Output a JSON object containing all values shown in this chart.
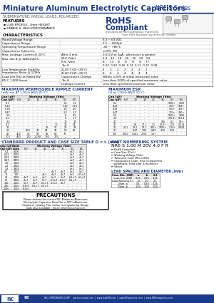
{
  "title": "Miniature Aluminum Electrolytic Capacitors",
  "series": "NRE-S Series",
  "bg_color": "#ffffff",
  "title_color": "#1a3a8a",
  "subtitle": "SUBMINIATURE, RADIAL LEADS, POLARIZED",
  "features_title": "FEATURES",
  "features": [
    "LOW PROFILE, 7mm HEIGHT",
    "STABLE & HIGH PERFORMANCE"
  ],
  "char_title": "CHARACTERISTICS",
  "char_note": "*See Part Number System for Details",
  "ripple_title": "MAXIMUM PERMISSIBLE RIPPLE CURRENT",
  "ripple_subtitle": "(mA rms AT 120Hz AND 85°C)",
  "ripple_headers": [
    "Cap (μF)",
    "Working Voltage (Vdc)",
    "6.3",
    "10",
    "16",
    "25",
    "35",
    "50",
    "63"
  ],
  "ripple_rows": [
    [
      "0.1",
      "",
      "-",
      "-",
      "-",
      "-",
      "-",
      "1.0",
      "1.2"
    ],
    [
      "0.22",
      "",
      "-",
      "-",
      "-",
      "-",
      "-",
      "1.47",
      "1.76"
    ],
    [
      "0.33",
      "",
      "-",
      "-",
      "-",
      "-",
      "-",
      "1.8",
      "2.0"
    ],
    [
      "0.47",
      "",
      "-",
      "-",
      "-",
      "-",
      "-",
      "2.3",
      "2.7"
    ],
    [
      "1.0",
      "",
      "-",
      "-",
      "-",
      "-",
      "-",
      "8",
      "9.5"
    ],
    [
      "2.2",
      "",
      "-",
      "-",
      "-",
      "-",
      "-",
      "9",
      "1.7"
    ],
    [
      "3.3",
      "",
      "-",
      "-",
      "-",
      "-",
      "-",
      "10",
      "12"
    ],
    [
      "4.7",
      "",
      "-",
      "-",
      "-",
      "-",
      "10",
      "20",
      "24"
    ],
    [
      "10",
      "",
      "-",
      "-",
      "-",
      "25",
      "27",
      "28",
      "33"
    ],
    [
      "22",
      "",
      "-",
      "200",
      "30",
      "45",
      "47",
      "50",
      "60"
    ],
    [
      "47",
      "",
      "400",
      "50",
      "55",
      "65",
      "68",
      "75",
      "-"
    ],
    [
      "100",
      "",
      "450",
      "110",
      "1,280",
      "195",
      "105",
      "-",
      "-"
    ]
  ],
  "esr_title": "MAXIMUM ESR",
  "esr_subtitle": "(Ω at 120Hz AND 20°C)",
  "esr_headers": [
    "Cap (μF)",
    "Working Voltage (Vdc)",
    "6.3",
    "10",
    "16",
    "25",
    "35",
    "50",
    "63"
  ],
  "esr_rows": [
    [
      "0.1",
      "",
      "-",
      "-",
      "-",
      "-",
      "-",
      "1000+",
      "1000"
    ],
    [
      "0.22",
      "",
      "-",
      "-",
      "-",
      "-",
      "-",
      "750+",
      "504+"
    ],
    [
      "0.33",
      "",
      "-",
      "-",
      "-",
      "-",
      "-",
      "520+",
      "350+"
    ],
    [
      "0.47",
      "",
      "-",
      "-",
      "-",
      "-",
      "-",
      "770+",
      "390+"
    ],
    [
      "1.0",
      "",
      "-",
      "-",
      "-",
      "-",
      "-",
      "1000+",
      "1680"
    ],
    [
      "2.2",
      "",
      "-",
      "-",
      "-",
      "-",
      "-",
      "275.4+",
      "501.4"
    ],
    [
      "4.7",
      "",
      "-",
      "-",
      "-",
      "-",
      "106",
      "0.1",
      "50+"
    ],
    [
      "10",
      "",
      "-",
      "80",
      "27.1",
      "1.1",
      "10.0+",
      "1.14",
      "0.514"
    ],
    [
      "22",
      "",
      "14.1",
      "19.1",
      "10.1",
      "100+",
      "1000+",
      "2.14+",
      "0.004"
    ],
    [
      "47",
      "",
      "-",
      "0.47",
      "7.04",
      "6.89",
      "4.20",
      "3.52",
      "-"
    ],
    [
      "100",
      "",
      "6000",
      "0.141",
      "2500",
      "1.0+",
      "-",
      "-",
      "-"
    ]
  ],
  "std_title": "STANDARD PRODUCT AND CASE SIZE TABLE D × L (mm)",
  "std_headers": [
    "Cap (μF)",
    "Code",
    "Working Voltage (Vdc)",
    "6.3",
    "10",
    "16",
    "25",
    "35",
    "50",
    "63"
  ],
  "std_rows": [
    [
      "0.1",
      "0100",
      "",
      "-",
      "-",
      "-",
      "-",
      "-",
      "4×7",
      "4×7"
    ],
    [
      "0.22",
      "0220",
      "",
      "-",
      "-",
      "-",
      "-",
      "-",
      "4×7",
      "4×7"
    ],
    [
      "0.33",
      "0330",
      "",
      "-",
      "-",
      "-",
      "-",
      "-",
      "4×7",
      "4×7"
    ],
    [
      "0.47",
      "0470",
      "",
      "-",
      "-",
      "-",
      "-",
      "-",
      "4×7",
      "4×7"
    ],
    [
      "1.0",
      "1005",
      "",
      "-",
      "-",
      "-",
      "-",
      "-",
      "4×7",
      "4×7"
    ],
    [
      "2.2",
      "2205",
      "",
      "-",
      "-",
      "-",
      "-",
      "-",
      "4×7",
      "4×7"
    ],
    [
      "3.3",
      "3305",
      "",
      "-",
      "-",
      "-",
      "-",
      "-",
      "4×7",
      "5×7"
    ],
    [
      "4.7",
      "4705",
      "",
      "-",
      "-",
      "-",
      "4×7",
      "4×7",
      "5×7",
      "5×7"
    ],
    [
      "10",
      "100",
      "",
      "-",
      "-",
      "4×7",
      "4×7",
      "4×7",
      "5×7",
      "6.3×7"
    ],
    [
      "22",
      "2200",
      "",
      "4×7",
      "4×7",
      "4×7",
      "5×7",
      "5×7",
      "6.3×7",
      "6.3×7"
    ],
    [
      "47",
      "4700",
      "",
      "4×7",
      "5×7",
      "5×7",
      "6.3×7",
      "6.3×7",
      "6.3×7",
      "-"
    ],
    [
      "100",
      "1010",
      "",
      "5×7",
      "5×7",
      "6.3×7",
      "6.3×7",
      "8×7",
      "-",
      "-"
    ],
    [
      "220",
      "2210",
      "",
      "6.3×7",
      "6.3×7",
      "6.3×7",
      "-",
      "-",
      "-",
      "-"
    ],
    [
      "1000",
      "1010",
      "",
      "6.3×7",
      "-",
      "-",
      "-",
      "-",
      "-",
      "-"
    ]
  ],
  "pns_title": "PART NUMBERING SYSTEM",
  "pns_example": "NRE-S 1.00 M 20V 4.0 F R",
  "lead_title": "LEAD SPACING AND DIAMETER (mm)",
  "precautions_title": "PRECAUTIONS",
  "footer_text": "NIC COMPONENTS CORP.    www.niccomp.com  |  www.lowESR.com  |  www.RFpassives.com  |  www.SMTmagnetics.com",
  "page_num": "92"
}
